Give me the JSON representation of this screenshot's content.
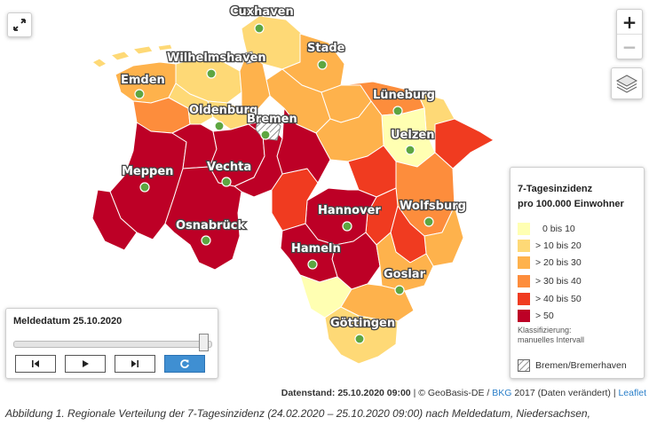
{
  "map": {
    "cities": [
      "Cuxhaven",
      "Stade",
      "Wilhelmshaven",
      "Emden",
      "Lüneburg",
      "Oldenburg",
      "Bremen",
      "Uelzen",
      "Meppen",
      "Vechta",
      "Hannover",
      "Wolfsburg",
      "Osnabrück",
      "Hameln",
      "Goslar",
      "Göttingen"
    ],
    "colors": {
      "c0": "#ffffb2",
      "c1": "#fed976",
      "c2": "#feb24c",
      "c3": "#fd8d3c",
      "c4": "#f03b20",
      "c5": "#bd0026",
      "dot": "#5da641"
    }
  },
  "controls": {
    "zoom_in": "+",
    "zoom_out": "−",
    "fullscreen_icon": "expand-icon",
    "layers_icon": "layers-icon"
  },
  "legend": {
    "title_line1": "7-Tagesinzidenz",
    "title_line2": "pro 100.000 Einwohner",
    "classes": [
      {
        "label": "0 bis 10",
        "color": "#ffffb2"
      },
      {
        "label": "> 10 bis 20",
        "color": "#fed976"
      },
      {
        "label": "> 20 bis 30",
        "color": "#feb24c"
      },
      {
        "label": "> 30 bis 40",
        "color": "#fd8d3c"
      },
      {
        "label": "> 40 bis 50",
        "color": "#f03b20"
      },
      {
        "label": "> 50",
        "color": "#bd0026"
      }
    ],
    "note_line1": "Klassifizierung:",
    "note_line2": "manuelles Intervall",
    "hatch_label": "Bremen/Bremerhaven"
  },
  "timeline": {
    "title": "Meldedatum 25.10.2020",
    "position": 1.0
  },
  "attribution": {
    "prefix": "Datenstand: 25.10.2020 09:00",
    "mid": " | © GeoBasis-DE / ",
    "bkg": "BKG",
    "suffix": " 2017 (Daten verändert) | ",
    "leaflet": "Leaflet"
  },
  "caption": "Abbildung 1. Regionale Verteilung der 7-Tagesinzidenz (24.02.2020 – 25.10.2020 09:00) nach Meldedatum, Niedersachsen,"
}
